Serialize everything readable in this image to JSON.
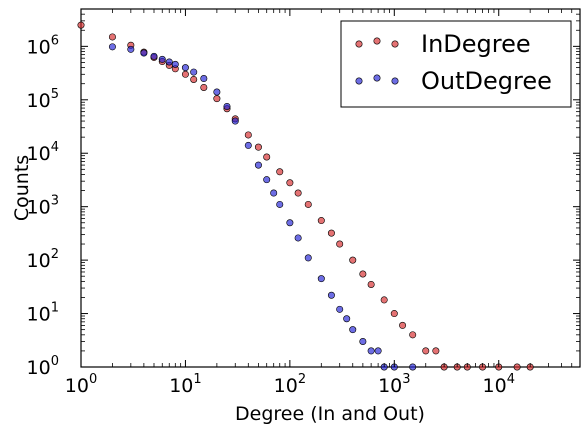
{
  "chart_data": {
    "type": "scatter",
    "xlabel": "Degree (In and Out)",
    "ylabel": "Counts",
    "xscale": "log",
    "yscale": "log",
    "xlim": [
      1,
      60000
    ],
    "ylim": [
      1,
      5000000
    ],
    "grid": false,
    "legend_position": "top-right",
    "x_ticks": [
      {
        "base": "10",
        "exp": "0",
        "value": 1
      },
      {
        "base": "10",
        "exp": "1",
        "value": 10
      },
      {
        "base": "10",
        "exp": "2",
        "value": 100
      },
      {
        "base": "10",
        "exp": "3",
        "value": 1000
      },
      {
        "base": "10",
        "exp": "4",
        "value": 10000
      }
    ],
    "y_ticks": [
      {
        "base": "10",
        "exp": "0",
        "value": 1
      },
      {
        "base": "10",
        "exp": "1",
        "value": 10
      },
      {
        "base": "10",
        "exp": "2",
        "value": 100
      },
      {
        "base": "10",
        "exp": "3",
        "value": 1000
      },
      {
        "base": "10",
        "exp": "4",
        "value": 10000
      },
      {
        "base": "10",
        "exp": "5",
        "value": 100000
      },
      {
        "base": "10",
        "exp": "6",
        "value": 1000000
      }
    ],
    "series": [
      {
        "name": "InDegree",
        "color": "#d62728",
        "points": [
          [
            1,
            2500000
          ],
          [
            2,
            1500000
          ],
          [
            3,
            1050000
          ],
          [
            4,
            780000
          ],
          [
            5,
            620000
          ],
          [
            6,
            520000
          ],
          [
            7,
            440000
          ],
          [
            8,
            380000
          ],
          [
            10,
            300000
          ],
          [
            12,
            240000
          ],
          [
            15,
            170000
          ],
          [
            20,
            105000
          ],
          [
            25,
            68000
          ],
          [
            30,
            44000
          ],
          [
            40,
            22000
          ],
          [
            50,
            13000
          ],
          [
            60,
            8500
          ],
          [
            80,
            4500
          ],
          [
            100,
            2800
          ],
          [
            120,
            1800
          ],
          [
            150,
            1100
          ],
          [
            200,
            550
          ],
          [
            250,
            320
          ],
          [
            300,
            200
          ],
          [
            400,
            100
          ],
          [
            500,
            55
          ],
          [
            600,
            35
          ],
          [
            800,
            18
          ],
          [
            1000,
            10
          ],
          [
            1200,
            6
          ],
          [
            1500,
            4
          ],
          [
            2000,
            2
          ],
          [
            2500,
            2
          ],
          [
            3000,
            1
          ],
          [
            4000,
            1
          ],
          [
            5000,
            1
          ],
          [
            7000,
            1
          ],
          [
            10000,
            1
          ],
          [
            15000,
            1
          ],
          [
            20000,
            1
          ]
        ]
      },
      {
        "name": "OutDegree",
        "color": "#1f1fd6",
        "points": [
          [
            2,
            980000
          ],
          [
            3,
            880000
          ],
          [
            4,
            750000
          ],
          [
            5,
            650000
          ],
          [
            6,
            570000
          ],
          [
            7,
            510000
          ],
          [
            8,
            460000
          ],
          [
            10,
            400000
          ],
          [
            12,
            330000
          ],
          [
            15,
            250000
          ],
          [
            20,
            140000
          ],
          [
            25,
            75000
          ],
          [
            30,
            40000
          ],
          [
            40,
            14000
          ],
          [
            50,
            6000
          ],
          [
            60,
            3200
          ],
          [
            70,
            1800
          ],
          [
            80,
            1100
          ],
          [
            100,
            500
          ],
          [
            120,
            260
          ],
          [
            150,
            110
          ],
          [
            200,
            45
          ],
          [
            250,
            22
          ],
          [
            300,
            12
          ],
          [
            350,
            8
          ],
          [
            400,
            5
          ],
          [
            500,
            3
          ],
          [
            600,
            2
          ],
          [
            700,
            2
          ],
          [
            800,
            1
          ],
          [
            1000,
            1
          ],
          [
            1500,
            1
          ]
        ]
      }
    ]
  }
}
